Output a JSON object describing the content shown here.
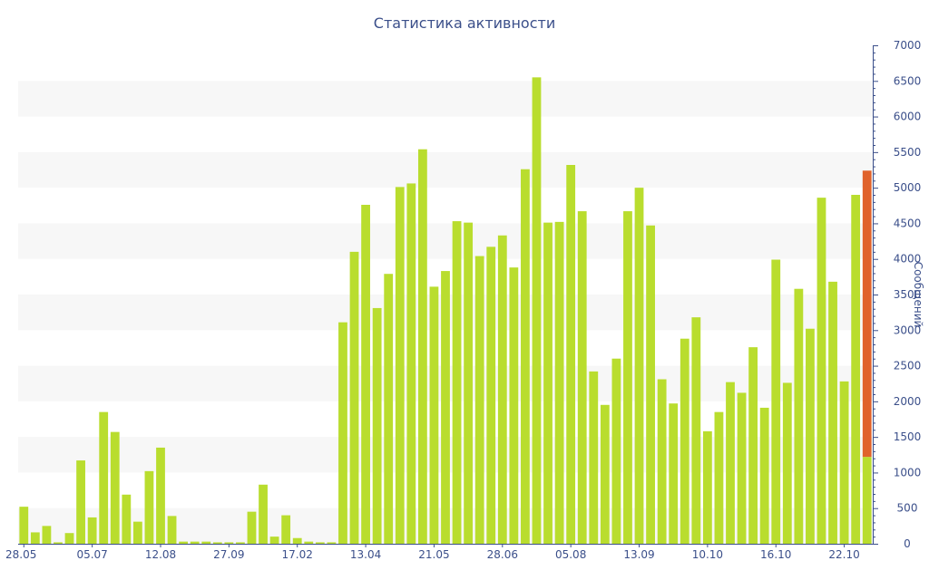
{
  "chart_data": {
    "type": "bar",
    "title": "Статистика активности",
    "xlabel": "",
    "ylabel": "Сообщений",
    "ylim": [
      0,
      7000
    ],
    "y_ticks": [
      0,
      500,
      1000,
      1500,
      2000,
      2500,
      3000,
      3500,
      4000,
      4500,
      5000,
      5500,
      6000,
      6500,
      7000
    ],
    "x_tick_labels": [
      "28.05",
      "05.07",
      "12.08",
      "27.09",
      "17.02",
      "13.04",
      "21.05",
      "28.06",
      "05.08",
      "13.09",
      "10.10",
      "16.10",
      "22.10"
    ],
    "x_tick_bar_index": [
      0,
      6,
      12,
      18,
      24,
      30,
      36,
      42,
      48,
      54,
      60,
      66,
      72
    ],
    "y_axis_side": "right",
    "grid": "alternating horizontal bands",
    "colors": {
      "bar": "#b9dd2e",
      "highlight": "#e0622b",
      "axis": "#3b4f8a",
      "band": "#f7f7f7"
    },
    "values": [
      520,
      160,
      250,
      20,
      150,
      1170,
      370,
      1850,
      1570,
      690,
      310,
      1020,
      1350,
      390,
      30,
      30,
      30,
      20,
      20,
      20,
      450,
      830,
      100,
      400,
      80,
      30,
      20,
      20,
      3110,
      4100,
      4760,
      3310,
      3790,
      5010,
      5060,
      5540,
      3610,
      3830,
      4530,
      4510,
      4040,
      4170,
      4330,
      3880,
      5260,
      6550,
      4510,
      4520,
      5320,
      4670,
      2420,
      1950,
      2600,
      4670,
      5000,
      4470,
      2310,
      1970,
      2880,
      3180,
      1580,
      1850,
      2270,
      2120,
      2760,
      1910,
      3990,
      2260,
      3580,
      3020,
      4860,
      3680,
      2280,
      4900,
      1220
    ],
    "highlight": {
      "index": 74,
      "extra": 4020
    }
  }
}
